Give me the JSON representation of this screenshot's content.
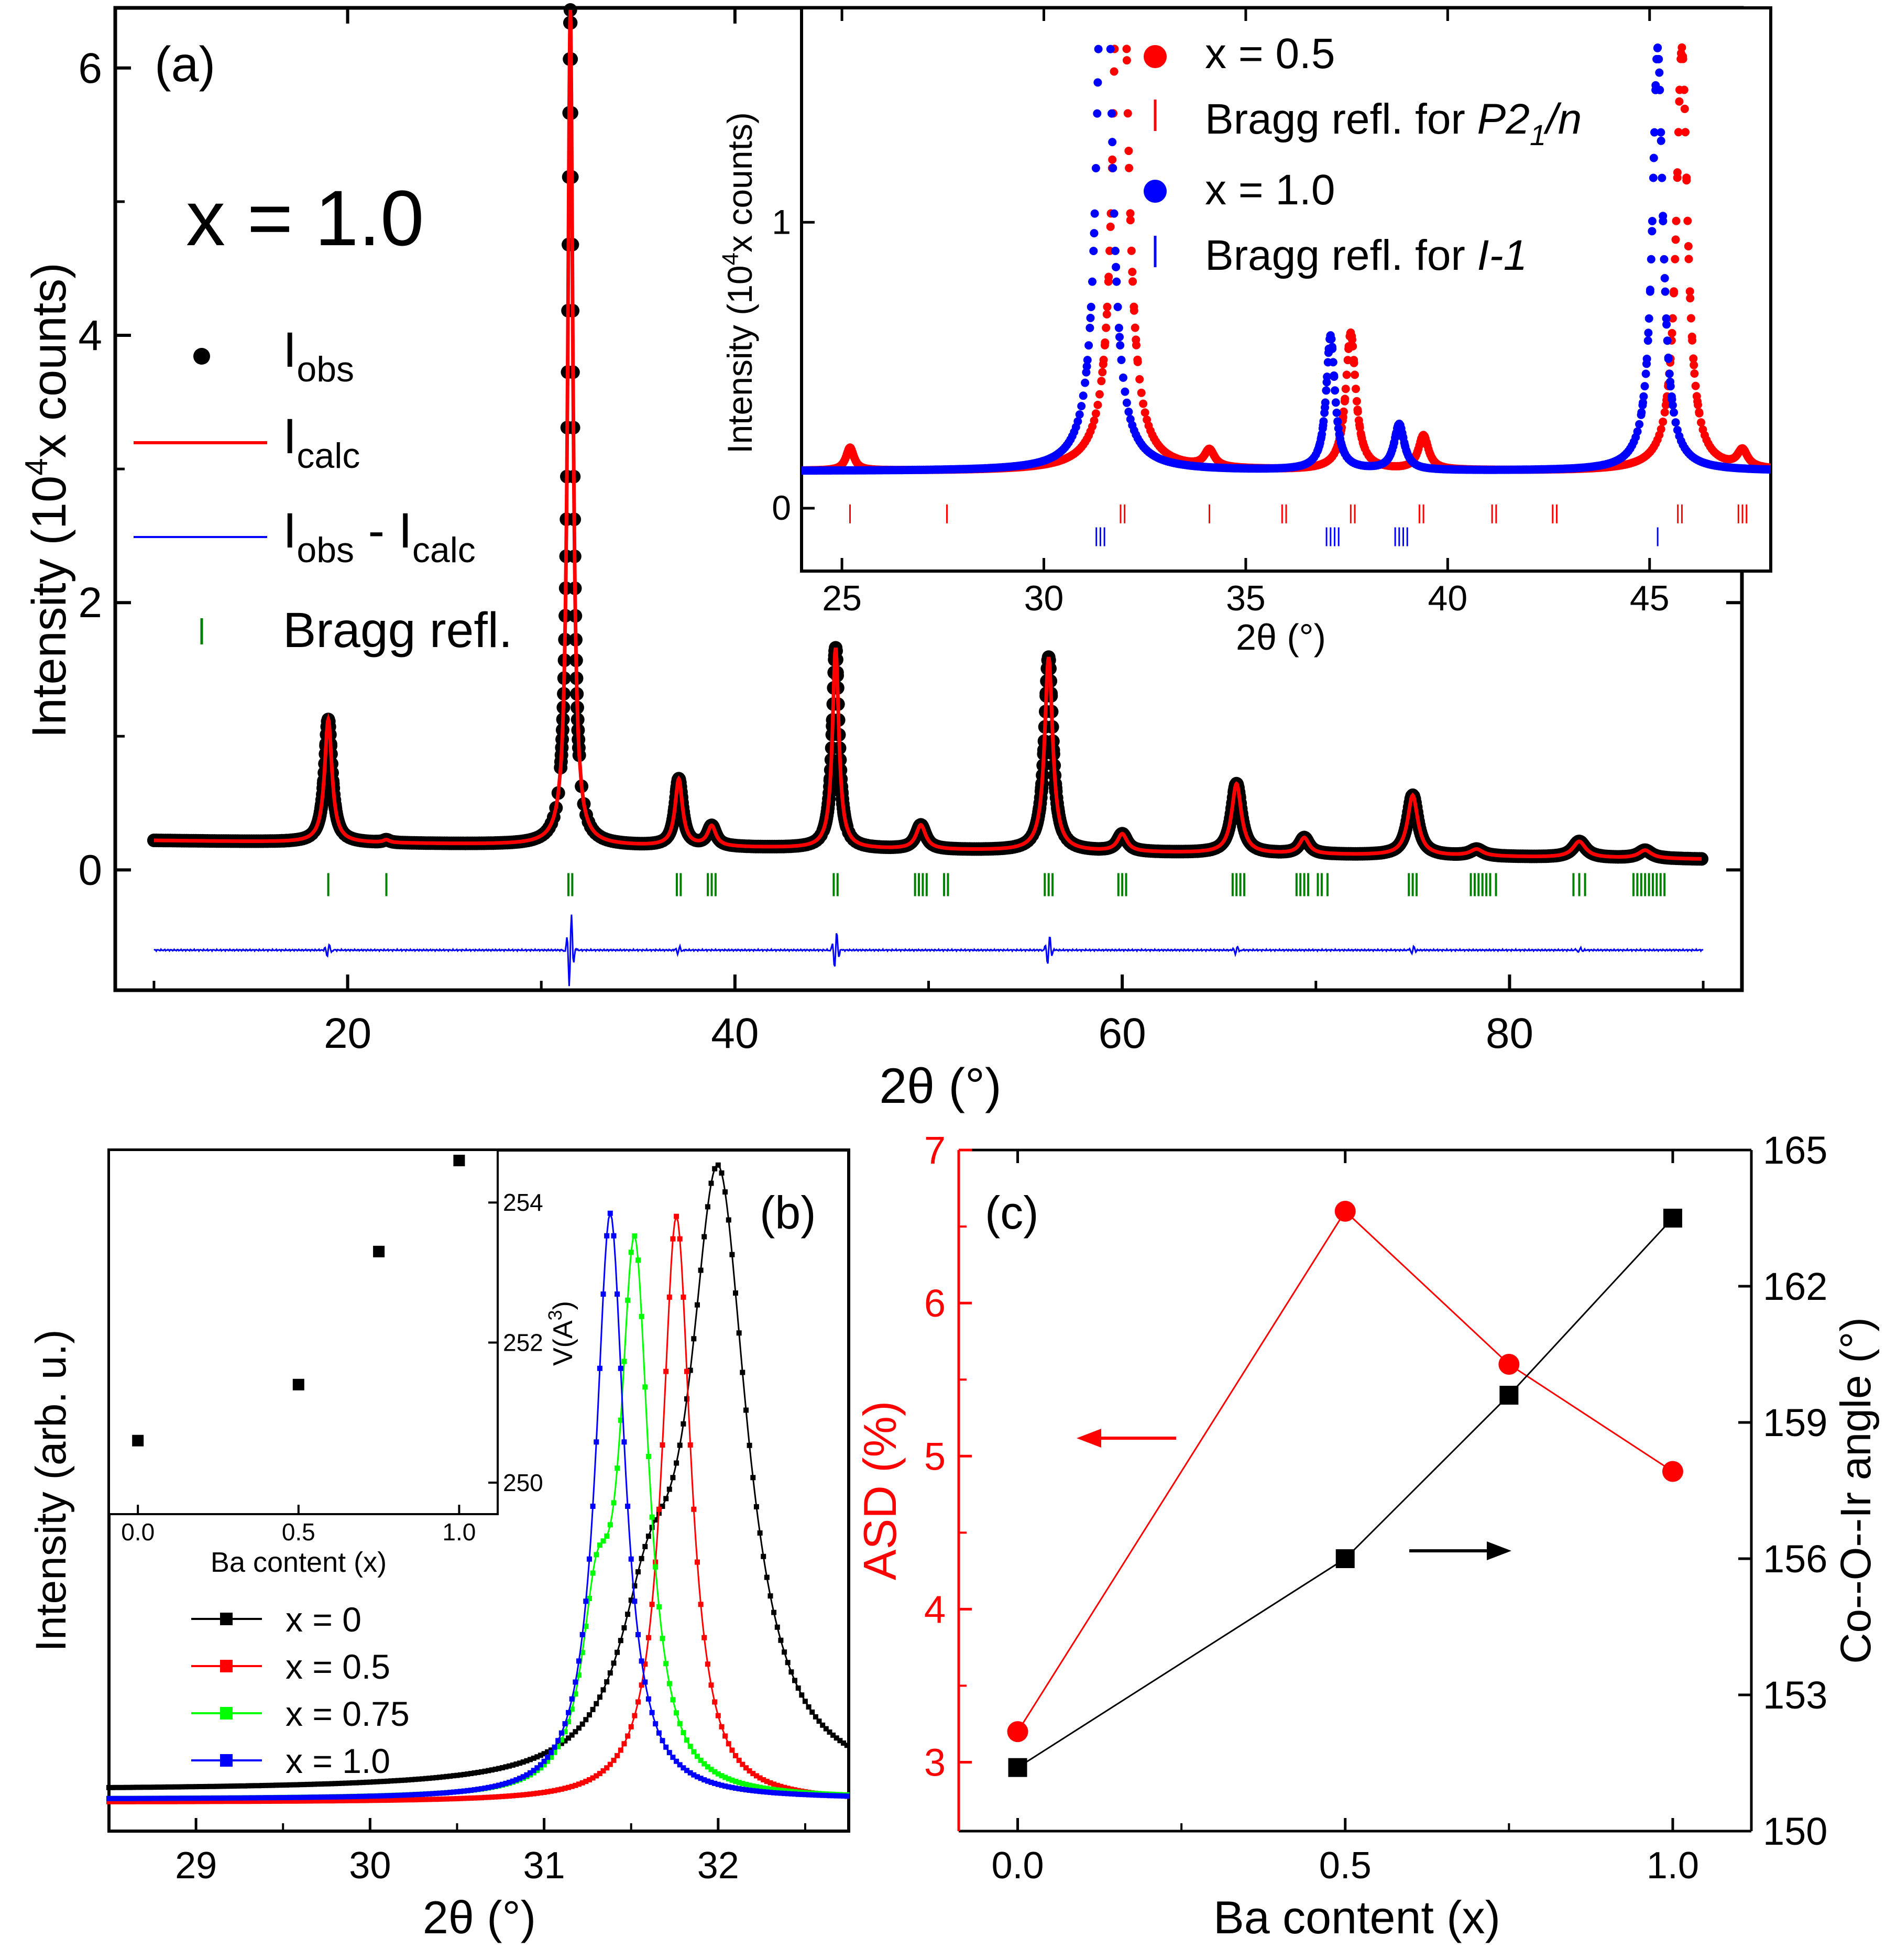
{
  "figure": {
    "colors": {
      "black": "#000000",
      "red": "#ff0000",
      "blue": "#0000ff",
      "green": "#00ff00",
      "dark_green": "#008000"
    }
  },
  "panel_a": {
    "label": "(a)",
    "big_label": "x = 1.0",
    "xlabel": "2θ (°)",
    "ylabel_pre": "Intensity (10",
    "ylabel_sup": "4",
    "ylabel_post": "x counts)",
    "xlim": [
      8,
      92
    ],
    "ylim": [
      -0.9,
      6.45
    ],
    "xticks": [
      "20",
      "40",
      "60",
      "80"
    ],
    "yticks": [
      "0",
      "2",
      "4",
      "6"
    ],
    "legend": {
      "obs_main": "I",
      "obs_sub": "obs",
      "calc_main": "I",
      "calc_sub": "calc",
      "diff_main1": "I",
      "diff_sub1": "obs",
      "diff_mid": " - I",
      "diff_sub2": "calc",
      "bragg": "Bragg refl."
    }
  },
  "panel_a_inset": {
    "xlabel": "2θ (°)",
    "ylabel_pre": "Intensity (10",
    "ylabel_sup": "4",
    "ylabel_post": "x counts)",
    "xlim": [
      24,
      48
    ],
    "ylim": [
      -0.22,
      1.75
    ],
    "xticks": [
      "25",
      "30",
      "35",
      "40",
      "45"
    ],
    "yticks": [
      "0",
      "1"
    ],
    "legend": {
      "x05": "x = 0.5",
      "bragg_p_pre": "Bragg refl. for ",
      "bragg_p_it1": "P2",
      "bragg_p_sub": "1",
      "bragg_p_it2": "/n",
      "x10": "x = 1.0",
      "bragg_i_pre": "Bragg refl. for ",
      "bragg_i_it": "I-1"
    }
  },
  "panel_b": {
    "label": "(b)",
    "xlabel": "2θ (°)",
    "ylabel": "Intensity (arb. u.)",
    "xlim": [
      28.5,
      32.75
    ],
    "xticks": [
      "29",
      "30",
      "31",
      "32"
    ],
    "legend": [
      "x = 0",
      "x = 0.5",
      "x = 0.75",
      "x = 1.0"
    ]
  },
  "panel_b_inset": {
    "xlabel": "Ba content (x)",
    "ylabel_pre": "V(A",
    "ylabel_sup": "3",
    "ylabel_post": ")",
    "xlim": [
      -0.09,
      1.12
    ],
    "ylim": [
      249.55,
      254.75
    ],
    "xticks": [
      "0.0",
      "0.5",
      "1.0"
    ],
    "yticks": [
      "250",
      "252",
      "254"
    ]
  },
  "panel_c": {
    "label": "(c)",
    "xlabel": "Ba content (x)",
    "ylabel_left": "ASD (%)",
    "ylabel_right": "Co--O--Ir angle (°)",
    "xlim": [
      -0.09,
      1.12
    ],
    "ylim_left": [
      2.55,
      7.0
    ],
    "ylim_right": [
      150,
      165
    ],
    "xticks": [
      "0.0",
      "0.5",
      "1.0"
    ],
    "yticks_left": [
      "3",
      "4",
      "5",
      "6",
      "7"
    ],
    "yticks_right": [
      "150",
      "153",
      "156",
      "159",
      "162",
      "165"
    ]
  },
  "chart_data": [
    {
      "panel": "a",
      "type": "line",
      "xlabel": "2θ (°)",
      "ylabel": "Intensity (10^4 x counts)",
      "xlim": [
        8,
        92
      ],
      "ylim": [
        -0.9,
        6.45
      ],
      "background": {
        "x": [
          10,
          90
        ],
        "y": [
          0.22,
          0.08
        ]
      },
      "peaks": [
        {
          "x": 19.0,
          "height": 0.92,
          "width": 0.23
        },
        {
          "x": 22.0,
          "height": 0.02,
          "width": 0.2
        },
        {
          "x": 31.5,
          "height": 6.25,
          "width": 0.16
        },
        {
          "x": 37.1,
          "height": 0.5,
          "width": 0.23
        },
        {
          "x": 38.8,
          "height": 0.15,
          "width": 0.26
        },
        {
          "x": 45.2,
          "height": 1.5,
          "width": 0.2
        },
        {
          "x": 49.6,
          "height": 0.18,
          "width": 0.3
        },
        {
          "x": 56.2,
          "height": 1.45,
          "width": 0.25
        },
        {
          "x": 60.0,
          "height": 0.13,
          "width": 0.3
        },
        {
          "x": 65.9,
          "height": 0.52,
          "width": 0.3
        },
        {
          "x": 69.4,
          "height": 0.12,
          "width": 0.3
        },
        {
          "x": 75.0,
          "height": 0.45,
          "width": 0.32
        },
        {
          "x": 78.3,
          "height": 0.05,
          "width": 0.4
        },
        {
          "x": 83.6,
          "height": 0.12,
          "width": 0.4
        },
        {
          "x": 87.0,
          "height": 0.06,
          "width": 0.4
        }
      ],
      "series": [
        {
          "name": "Iobs",
          "style": "points",
          "color": "#000000"
        },
        {
          "name": "Icalc",
          "style": "line",
          "color": "#ff0000"
        },
        {
          "name": "Iobs - Icalc",
          "style": "line",
          "color": "#0000ff",
          "offset": -0.6,
          "spikes": [
            {
              "x": 19.0,
              "amp": 0.05
            },
            {
              "x": 31.5,
              "amp": 0.3
            },
            {
              "x": 37.1,
              "amp": 0.03
            },
            {
              "x": 45.2,
              "amp": 0.15
            },
            {
              "x": 56.2,
              "amp": 0.12
            },
            {
              "x": 65.9,
              "amp": 0.03
            },
            {
              "x": 75.0,
              "amp": 0.03
            },
            {
              "x": 83.6,
              "amp": 0.02
            }
          ]
        },
        {
          "name": "Bragg refl.",
          "style": "ticks",
          "color": "#008000",
          "y": -0.11,
          "positions": [
            19.0,
            22.0,
            31.4,
            31.6,
            37.0,
            37.2,
            38.6,
            38.8,
            39.0,
            45.1,
            45.3,
            49.3,
            49.5,
            49.7,
            49.9,
            50.8,
            51.0,
            56.0,
            56.2,
            56.4,
            59.8,
            60.0,
            60.2,
            65.7,
            65.9,
            66.1,
            66.3,
            69.0,
            69.2,
            69.4,
            69.6,
            70.1,
            70.3,
            70.6,
            74.8,
            75.0,
            75.2,
            78.0,
            78.2,
            78.4,
            78.6,
            78.8,
            79.0,
            79.3,
            83.3,
            83.6,
            83.9,
            86.4,
            86.6,
            86.8,
            87.0,
            87.2,
            87.4,
            87.6,
            87.8,
            88.0
          ]
        }
      ]
    },
    {
      "panel": "a-inset",
      "type": "scatter",
      "xlabel": "2θ (°)",
      "ylabel": "Intensity (10^4 x counts)",
      "xlim": [
        24,
        48
      ],
      "ylim": [
        -0.22,
        1.75
      ],
      "background": 0.13,
      "series": [
        {
          "name": "x = 0.5",
          "color": "#ff0000",
          "peaks": [
            {
              "x": 25.2,
              "height": 0.08,
              "width": 0.12
            },
            {
              "x": 31.9,
              "height": 2.5,
              "width": 0.18
            },
            {
              "x": 34.1,
              "height": 0.06,
              "width": 0.15
            },
            {
              "x": 37.6,
              "height": 0.48,
              "width": 0.15
            },
            {
              "x": 39.4,
              "height": 0.12,
              "width": 0.15
            },
            {
              "x": 45.8,
              "height": 1.48,
              "width": 0.17
            },
            {
              "x": 47.3,
              "height": 0.06,
              "width": 0.15
            }
          ],
          "bragg_y": -0.02,
          "bragg": [
            25.2,
            27.6,
            31.9,
            32.0,
            34.1,
            35.9,
            36.0,
            37.6,
            37.7,
            39.3,
            39.4,
            41.1,
            41.2,
            42.6,
            42.7,
            45.7,
            45.8,
            47.2,
            47.3,
            47.4
          ]
        },
        {
          "name": "x = 1.0",
          "color": "#0000ff",
          "peaks": [
            {
              "x": 31.5,
              "height": 2.5,
              "width": 0.18
            },
            {
              "x": 37.1,
              "height": 0.47,
              "width": 0.13
            },
            {
              "x": 38.8,
              "height": 0.16,
              "width": 0.15
            },
            {
              "x": 45.2,
              "height": 1.48,
              "width": 0.16
            }
          ],
          "bragg_y": -0.1,
          "bragg": [
            31.3,
            31.4,
            31.5,
            37.0,
            37.1,
            37.2,
            37.3,
            38.7,
            38.8,
            38.9,
            39.0,
            45.2
          ]
        }
      ]
    },
    {
      "panel": "b",
      "type": "line",
      "xlabel": "2θ (°)",
      "ylabel": "Intensity (arb. u.)",
      "xlim": [
        28.5,
        32.75
      ],
      "series": [
        {
          "name": "x = 0",
          "color": "#000000",
          "baseline": 0.02,
          "components": [
            {
              "x": 32.0,
              "height": 0.98,
              "width": 0.2
            },
            {
              "x": 31.6,
              "height": 0.22,
              "width": 0.2
            }
          ]
        },
        {
          "name": "x = 0.5",
          "color": "#ff0000",
          "baseline": 0.0,
          "components": [
            {
              "x": 31.76,
              "height": 0.96,
              "width": 0.1
            }
          ]
        },
        {
          "name": "x = 0.75",
          "color": "#00ff00",
          "baseline": 0.005,
          "components": [
            {
              "x": 31.52,
              "height": 0.88,
              "width": 0.1
            },
            {
              "x": 31.3,
              "height": 0.25,
              "width": 0.1
            }
          ]
        },
        {
          "name": "x = 1.0",
          "color": "#0000ff",
          "baseline": 0.005,
          "components": [
            {
              "x": 31.38,
              "height": 0.96,
              "width": 0.1
            }
          ]
        }
      ]
    },
    {
      "panel": "b-inset",
      "type": "scatter",
      "xlabel": "Ba content (x)",
      "ylabel": "V(A^3)",
      "x": [
        0.0,
        0.5,
        0.75,
        1.0
      ],
      "y": [
        250.6,
        251.4,
        253.3,
        254.6
      ]
    },
    {
      "panel": "c",
      "type": "line",
      "xlabel": "Ba content (x)",
      "x": [
        0.0,
        0.5,
        0.75,
        1.0
      ],
      "series": [
        {
          "name": "ASD (%)",
          "axis": "left",
          "color": "#ff0000",
          "marker": "circle",
          "values": [
            3.2,
            6.6,
            5.6,
            4.9
          ]
        },
        {
          "name": "Co--O--Ir angle (°)",
          "axis": "right",
          "color": "#000000",
          "marker": "square",
          "values": [
            151.4,
            156.0,
            159.6,
            163.5
          ]
        }
      ],
      "annotations": [
        {
          "type": "arrow",
          "direction": "left",
          "color": "#ff0000"
        },
        {
          "type": "arrow",
          "direction": "right",
          "color": "#000000"
        }
      ]
    }
  ]
}
